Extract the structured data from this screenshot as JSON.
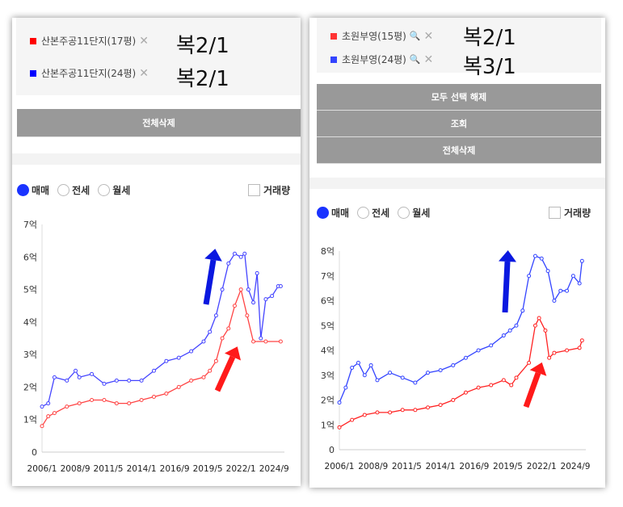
{
  "left": {
    "legend": [
      {
        "name": "산본주공11단지(17평)",
        "color": "#ff0000",
        "note": "복2/1"
      },
      {
        "name": "산본주공11단지(24평)",
        "color": "#0000ff",
        "note": "복2/1"
      }
    ],
    "buttons": {
      "delete_all": "전체삭제"
    },
    "radios": [
      "매매",
      "전세",
      "월세"
    ],
    "selected_radio": "매매",
    "checkbox": "거래량",
    "chart_data": {
      "type": "line",
      "yticks": [
        "0",
        "1억",
        "2억",
        "3억",
        "4억",
        "5억",
        "6억",
        "7억"
      ],
      "ylim": [
        0,
        7
      ],
      "xticks": [
        {
          "label": "2006/1",
          "v": 2006.0
        },
        {
          "label": "2008/9",
          "v": 2008.67
        },
        {
          "label": "2011/5",
          "v": 2011.33
        },
        {
          "label": "2014/1",
          "v": 2014.0
        },
        {
          "label": "2016/9",
          "v": 2016.67
        },
        {
          "label": "2019/5",
          "v": 2019.33
        },
        {
          "label": "2022/1",
          "v": 2022.0
        },
        {
          "label": "2024/9",
          "v": 2024.67
        }
      ],
      "xlim": [
        2006.0,
        2025.5
      ],
      "series": [
        {
          "name": "산본주공11단지(17평)",
          "color": "#ff4444",
          "points": [
            [
              2006,
              0.8
            ],
            [
              2006.5,
              1.1
            ],
            [
              2007,
              1.2
            ],
            [
              2008,
              1.4
            ],
            [
              2009,
              1.5
            ],
            [
              2010,
              1.6
            ],
            [
              2011,
              1.6
            ],
            [
              2012,
              1.5
            ],
            [
              2013,
              1.5
            ],
            [
              2014,
              1.6
            ],
            [
              2015,
              1.7
            ],
            [
              2016,
              1.8
            ],
            [
              2017,
              2.0
            ],
            [
              2018,
              2.2
            ],
            [
              2019,
              2.3
            ],
            [
              2019.5,
              2.5
            ],
            [
              2020,
              2.8
            ],
            [
              2020.5,
              3.5
            ],
            [
              2021,
              3.8
            ],
            [
              2021.5,
              4.5
            ],
            [
              2022,
              5.0
            ],
            [
              2022.5,
              4.2
            ],
            [
              2023,
              3.4
            ],
            [
              2024,
              3.4
            ],
            [
              2025.2,
              3.4
            ]
          ]
        },
        {
          "name": "산본주공11단지(24평)",
          "color": "#4444ff",
          "points": [
            [
              2006,
              1.4
            ],
            [
              2006.5,
              1.5
            ],
            [
              2007,
              2.3
            ],
            [
              2008,
              2.2
            ],
            [
              2008.7,
              2.5
            ],
            [
              2009,
              2.3
            ],
            [
              2010,
              2.4
            ],
            [
              2011,
              2.1
            ],
            [
              2012,
              2.2
            ],
            [
              2013,
              2.2
            ],
            [
              2014,
              2.2
            ],
            [
              2015,
              2.5
            ],
            [
              2016,
              2.8
            ],
            [
              2017,
              2.9
            ],
            [
              2018,
              3.1
            ],
            [
              2019,
              3.4
            ],
            [
              2019.5,
              3.7
            ],
            [
              2020,
              4.2
            ],
            [
              2020.5,
              5.0
            ],
            [
              2021,
              5.8
            ],
            [
              2021.5,
              6.1
            ],
            [
              2022,
              6.0
            ],
            [
              2022.3,
              6.1
            ],
            [
              2022.6,
              5.0
            ],
            [
              2023,
              4.6
            ],
            [
              2023.3,
              5.5
            ],
            [
              2023.6,
              3.5
            ],
            [
              2024,
              4.7
            ],
            [
              2024.5,
              4.8
            ],
            [
              2025,
              5.1
            ],
            [
              2025.2,
              5.1
            ]
          ]
        }
      ]
    }
  },
  "right": {
    "legend": [
      {
        "name": "초원부영(15평)",
        "color": "#ff3333",
        "note": "복2/1"
      },
      {
        "name": "초원부영(24평)",
        "color": "#3344ff",
        "note": "복3/1"
      }
    ],
    "buttons": {
      "deselect_all": "모두 선택 해제",
      "search": "조회",
      "delete_all": "전체삭제"
    },
    "radios": [
      "매매",
      "전세",
      "월세"
    ],
    "selected_radio": "매매",
    "checkbox": "거래량",
    "chart_data": {
      "type": "line",
      "yticks": [
        "0",
        "1억",
        "2억",
        "3억",
        "4억",
        "5억",
        "6억",
        "7억",
        "8억"
      ],
      "ylim": [
        0,
        8
      ],
      "xticks": [
        {
          "label": "2006/1",
          "v": 2006.0
        },
        {
          "label": "2008/9",
          "v": 2008.67
        },
        {
          "label": "2011/5",
          "v": 2011.33
        },
        {
          "label": "2014/1",
          "v": 2014.0
        },
        {
          "label": "2016/9",
          "v": 2016.67
        },
        {
          "label": "2019/5",
          "v": 2019.33
        },
        {
          "label": "2022/1",
          "v": 2022.0
        },
        {
          "label": "2024/9",
          "v": 2024.67
        }
      ],
      "xlim": [
        2006.0,
        2025.5
      ],
      "series": [
        {
          "name": "초원부영(15평)",
          "color": "#ff2222",
          "points": [
            [
              2006,
              0.9
            ],
            [
              2007,
              1.2
            ],
            [
              2008,
              1.4
            ],
            [
              2009,
              1.5
            ],
            [
              2010,
              1.5
            ],
            [
              2011,
              1.6
            ],
            [
              2012,
              1.6
            ],
            [
              2013,
              1.7
            ],
            [
              2014,
              1.8
            ],
            [
              2015,
              2.0
            ],
            [
              2016,
              2.3
            ],
            [
              2017,
              2.5
            ],
            [
              2018,
              2.6
            ],
            [
              2019,
              2.8
            ],
            [
              2019.6,
              2.6
            ],
            [
              2020,
              2.9
            ],
            [
              2021,
              3.5
            ],
            [
              2021.5,
              5.0
            ],
            [
              2021.8,
              5.3
            ],
            [
              2022.3,
              4.8
            ],
            [
              2022.6,
              3.7
            ],
            [
              2023,
              3.9
            ],
            [
              2024,
              4.0
            ],
            [
              2025,
              4.1
            ],
            [
              2025.2,
              4.4
            ]
          ]
        },
        {
          "name": "초원부영(24평)",
          "color": "#3344ff",
          "points": [
            [
              2006,
              1.9
            ],
            [
              2006.5,
              2.5
            ],
            [
              2007,
              3.3
            ],
            [
              2007.5,
              3.5
            ],
            [
              2008,
              3.0
            ],
            [
              2008.5,
              3.4
            ],
            [
              2009,
              2.8
            ],
            [
              2010,
              3.1
            ],
            [
              2011,
              2.9
            ],
            [
              2012,
              2.7
            ],
            [
              2013,
              3.1
            ],
            [
              2014,
              3.2
            ],
            [
              2015,
              3.4
            ],
            [
              2016,
              3.7
            ],
            [
              2017,
              4.0
            ],
            [
              2018,
              4.2
            ],
            [
              2019,
              4.6
            ],
            [
              2019.5,
              4.8
            ],
            [
              2020,
              5.0
            ],
            [
              2020.5,
              5.6
            ],
            [
              2021,
              7.0
            ],
            [
              2021.5,
              7.8
            ],
            [
              2022,
              7.7
            ],
            [
              2022.5,
              7.2
            ],
            [
              2023,
              6.0
            ],
            [
              2023.5,
              6.4
            ],
            [
              2024,
              6.4
            ],
            [
              2024.5,
              7.0
            ],
            [
              2025,
              6.7
            ],
            [
              2025.2,
              7.6
            ]
          ]
        }
      ]
    }
  }
}
